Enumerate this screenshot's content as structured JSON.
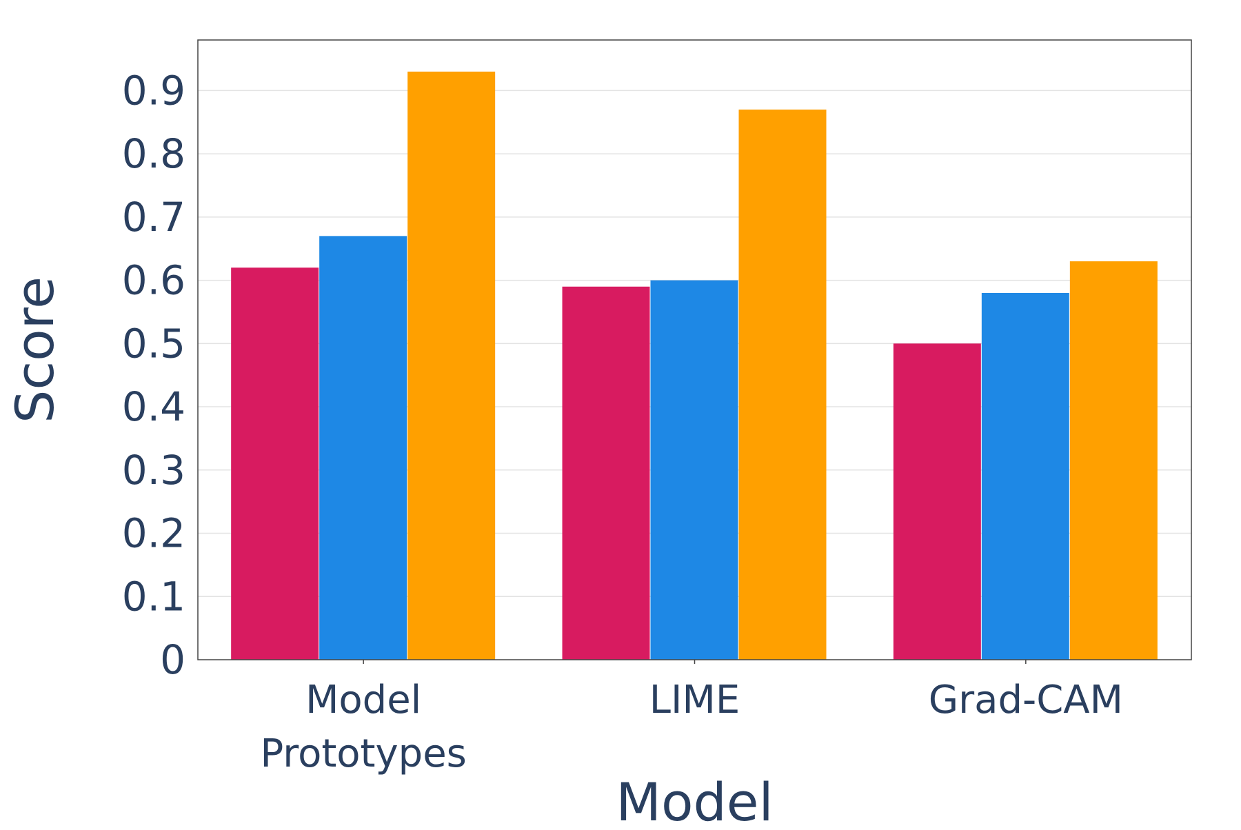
{
  "chart_data": {
    "type": "bar",
    "title": "",
    "xlabel": "Model",
    "ylabel": "Score",
    "categories": [
      [
        "Model",
        "Prototypes"
      ],
      [
        "LIME"
      ],
      [
        "Grad-CAM"
      ]
    ],
    "series": [
      {
        "values": [
          0.62,
          0.59,
          0.5
        ],
        "color": "#d81b60"
      },
      {
        "values": [
          0.67,
          0.6,
          0.58
        ],
        "color": "#1e88e5"
      },
      {
        "values": [
          0.93,
          0.87,
          0.63
        ],
        "color": "#ffa000"
      }
    ],
    "ylim": [
      0,
      0.98
    ],
    "yticks": [
      "0",
      "0.1",
      "0.2",
      "0.3",
      "0.4",
      "0.5",
      "0.6",
      "0.7",
      "0.8",
      "0.9"
    ],
    "grid": true,
    "legend": "none"
  }
}
